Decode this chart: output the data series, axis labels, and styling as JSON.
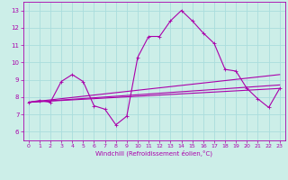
{
  "xlabel": "Windchill (Refroidissement éolien,°C)",
  "background_color": "#cceee8",
  "grid_color": "#aadddd",
  "line_color": "#aa00aa",
  "xlim": [
    -0.5,
    23.5
  ],
  "ylim": [
    5.5,
    13.5
  ],
  "xticks": [
    0,
    1,
    2,
    3,
    4,
    5,
    6,
    7,
    8,
    9,
    10,
    11,
    12,
    13,
    14,
    15,
    16,
    17,
    18,
    19,
    20,
    21,
    22,
    23
  ],
  "yticks": [
    6,
    7,
    8,
    9,
    10,
    11,
    12,
    13
  ],
  "series": [
    {
      "x": [
        0,
        1,
        2,
        3,
        4,
        5,
        6,
        7,
        8,
        9,
        10,
        11,
        12,
        13,
        14,
        15,
        16,
        17,
        18,
        19,
        20,
        21,
        22,
        23
      ],
      "y": [
        7.7,
        7.8,
        7.7,
        8.9,
        9.3,
        8.9,
        7.5,
        7.3,
        6.4,
        6.9,
        10.3,
        11.5,
        11.5,
        12.4,
        13.0,
        12.4,
        11.7,
        11.1,
        9.6,
        9.5,
        8.5,
        7.9,
        7.4,
        8.5
      ]
    },
    {
      "x": [
        0,
        23
      ],
      "y": [
        7.7,
        8.5
      ]
    },
    {
      "x": [
        0,
        23
      ],
      "y": [
        7.7,
        9.3
      ]
    },
    {
      "x": [
        0,
        23
      ],
      "y": [
        7.7,
        8.7
      ]
    }
  ]
}
